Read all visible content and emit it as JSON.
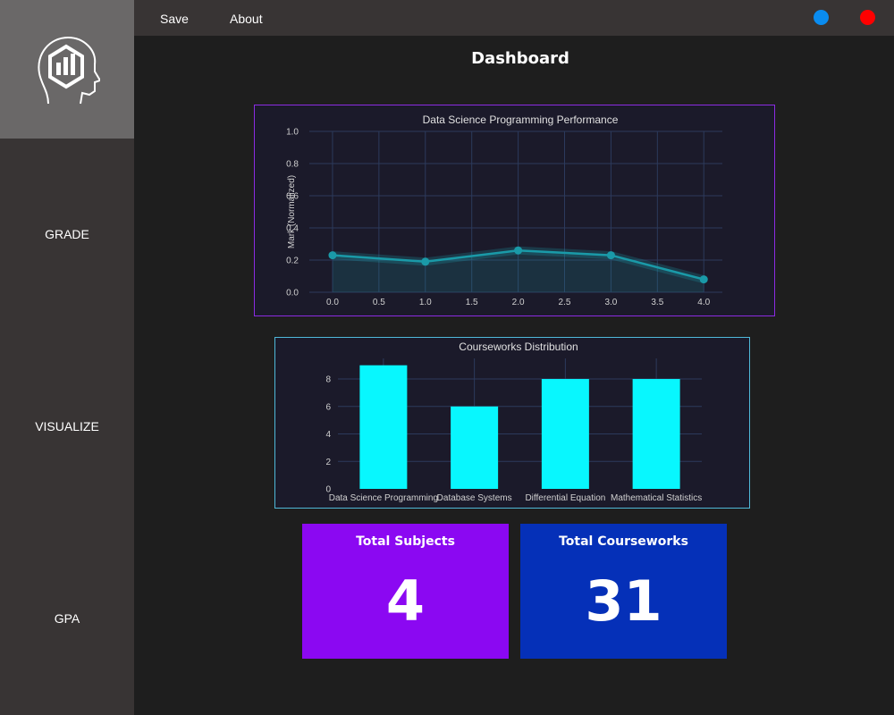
{
  "topbar": {
    "save_label": "Save",
    "about_label": "About"
  },
  "window_controls": {
    "minimize_color": "#0a8cf0",
    "close_color": "#ff0000"
  },
  "sidebar": {
    "logo_icon": "head-chart-logo-icon",
    "items": [
      {
        "label": "GRADE"
      },
      {
        "label": "VISUALIZE"
      },
      {
        "label": "GPA"
      }
    ]
  },
  "main": {
    "title": "Dashboard"
  },
  "chart_data": [
    {
      "type": "line",
      "title": "Data Science Programming Performance",
      "xlabel": "",
      "ylabel": "Mark (Normalized)",
      "x": [
        0,
        1,
        2,
        3,
        4
      ],
      "values": [
        0.23,
        0.19,
        0.26,
        0.23,
        0.08
      ],
      "xlim": [
        -0.25,
        4.2
      ],
      "ylim": [
        0,
        1.0
      ],
      "xticks": [
        0.0,
        0.5,
        1.0,
        1.5,
        2.0,
        2.5,
        3.0,
        3.5,
        4.0
      ],
      "xtick_labels": [
        "0.0",
        "0.5",
        "1.0",
        "1.5",
        "2.0",
        "2.5",
        "3.0",
        "3.5",
        "4.0"
      ],
      "yticks": [
        0.0,
        0.2,
        0.4,
        0.6,
        0.8,
        1.0
      ],
      "ytick_labels": [
        "0.0",
        "0.2",
        "0.4",
        "0.6",
        "0.8",
        "1.0"
      ],
      "grid": true,
      "color": "#1a9aa8"
    },
    {
      "type": "bar",
      "title": "Courseworks Distribution",
      "xlabel": "",
      "ylabel": "",
      "categories": [
        "Data Science Programming",
        "Database Systems",
        "Differential Equation",
        "Mathematical Statistics"
      ],
      "values": [
        9,
        6,
        8,
        8
      ],
      "ylim": [
        0,
        9.5
      ],
      "yticks": [
        0,
        2,
        4,
        6,
        8
      ],
      "ytick_labels": [
        "0",
        "2",
        "4",
        "6",
        "8"
      ],
      "grid": true,
      "color": "#08f7fe"
    }
  ],
  "stats": [
    {
      "label": "Total Subjects",
      "value": "4",
      "color": "#8b08f2"
    },
    {
      "label": "Total Courseworks",
      "value": "31",
      "color": "#0530b8"
    }
  ]
}
